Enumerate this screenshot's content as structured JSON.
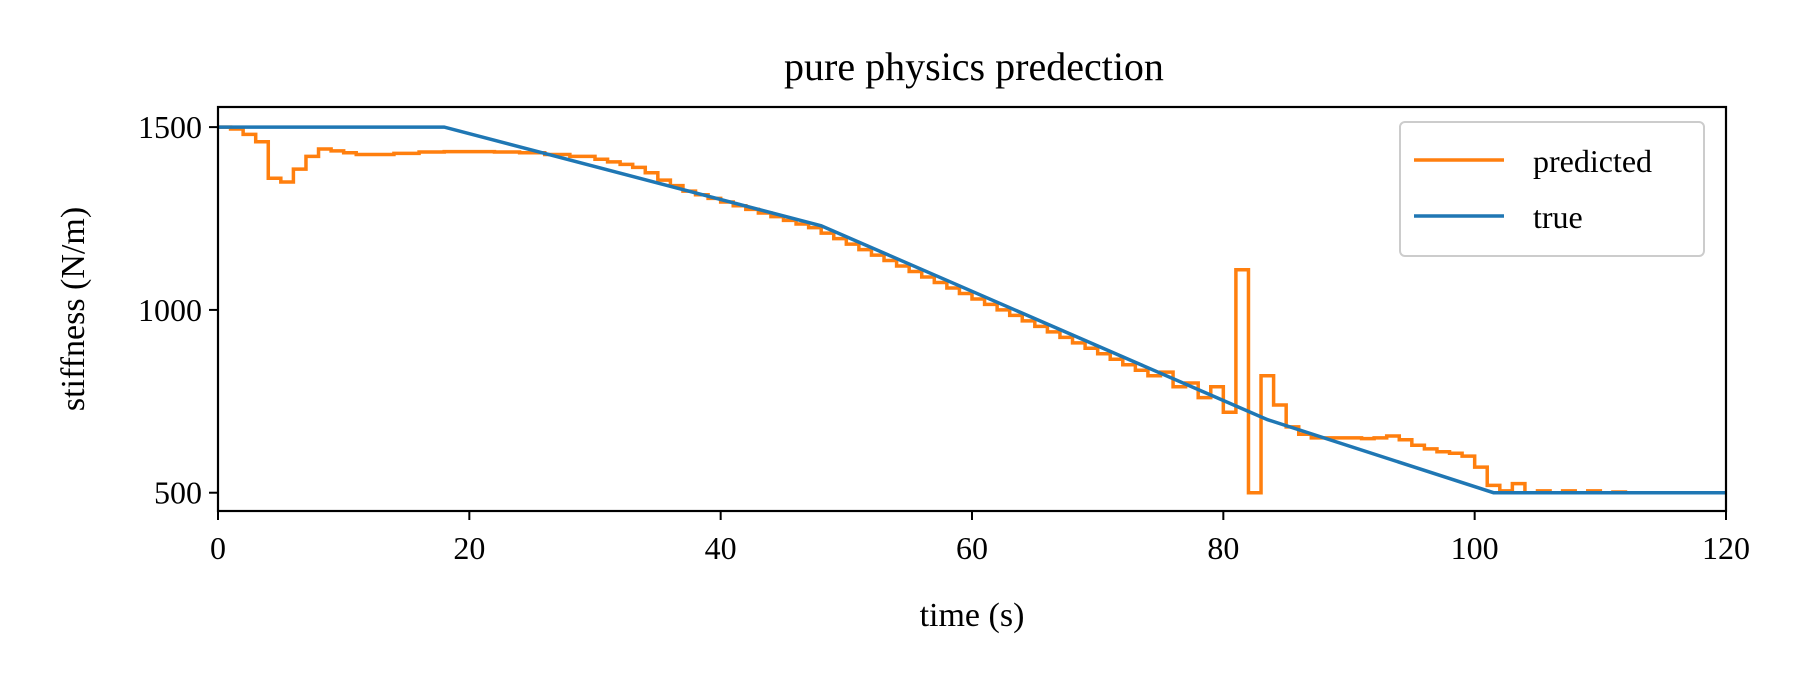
{
  "chart_data": {
    "type": "line",
    "title": "pure physics predection",
    "xlabel": "time (s)",
    "ylabel": "stiffness (N/m)",
    "xlim": [
      0,
      120
    ],
    "ylim": [
      450,
      1555
    ],
    "xticks": [
      0,
      20,
      40,
      60,
      80,
      100,
      120
    ],
    "yticks": [
      500,
      1000,
      1500
    ],
    "xtick_labels": [
      "0",
      "20",
      "40",
      "60",
      "80",
      "100",
      "120"
    ],
    "ytick_labels": [
      "500",
      "1000",
      "1500"
    ],
    "grid": false,
    "legend": {
      "placement": "top-right",
      "entries": [
        {
          "label": "predicted",
          "color": "#ff7f0e"
        },
        {
          "label": "true",
          "color": "#1f77b4"
        }
      ]
    },
    "series": [
      {
        "name": "true",
        "color": "#1f77b4",
        "step": false,
        "x": [
          0,
          18,
          48,
          83.5,
          101.5,
          120
        ],
        "y": [
          1500,
          1500,
          1230,
          700,
          500,
          500
        ]
      },
      {
        "name": "predicted",
        "color": "#ff7f0e",
        "step": true,
        "x": [
          0,
          1,
          2,
          3,
          4,
          5,
          6,
          7,
          8,
          9,
          10,
          11,
          12,
          14,
          16,
          18,
          20,
          22,
          24,
          26,
          28,
          30,
          31,
          32,
          33,
          34,
          35,
          36,
          37,
          38,
          39,
          40,
          41,
          42,
          43,
          44,
          45,
          46,
          47,
          48,
          49,
          50,
          51,
          52,
          53,
          54,
          55,
          56,
          57,
          58,
          59,
          60,
          61,
          62,
          63,
          64,
          65,
          66,
          67,
          68,
          69,
          70,
          71,
          72,
          73,
          74,
          75,
          76,
          77,
          78,
          79,
          80,
          81,
          82,
          83,
          84,
          85,
          86,
          87,
          88,
          89,
          90,
          91,
          92,
          93,
          94,
          95,
          96,
          97,
          98,
          99,
          100,
          101,
          102,
          103,
          104,
          105,
          106,
          107,
          108,
          109,
          110,
          111,
          112,
          120
        ],
        "y": [
          1500,
          1495,
          1480,
          1460,
          1360,
          1350,
          1385,
          1420,
          1440,
          1435,
          1430,
          1425,
          1425,
          1428,
          1432,
          1433,
          1433,
          1432,
          1430,
          1425,
          1420,
          1412,
          1405,
          1398,
          1390,
          1375,
          1355,
          1340,
          1325,
          1315,
          1305,
          1295,
          1285,
          1275,
          1265,
          1255,
          1245,
          1235,
          1225,
          1210,
          1195,
          1180,
          1165,
          1150,
          1135,
          1120,
          1105,
          1090,
          1075,
          1060,
          1045,
          1030,
          1015,
          1000,
          985,
          970,
          955,
          940,
          925,
          910,
          895,
          880,
          865,
          850,
          835,
          820,
          830,
          790,
          800,
          760,
          790,
          720,
          1110,
          500,
          820,
          740,
          680,
          660,
          650,
          650,
          650,
          650,
          648,
          650,
          655,
          645,
          630,
          620,
          612,
          608,
          600,
          570,
          520,
          505,
          525,
          500,
          505,
          500,
          505,
          500,
          505,
          500,
          502,
          500,
          500
        ]
      }
    ]
  }
}
